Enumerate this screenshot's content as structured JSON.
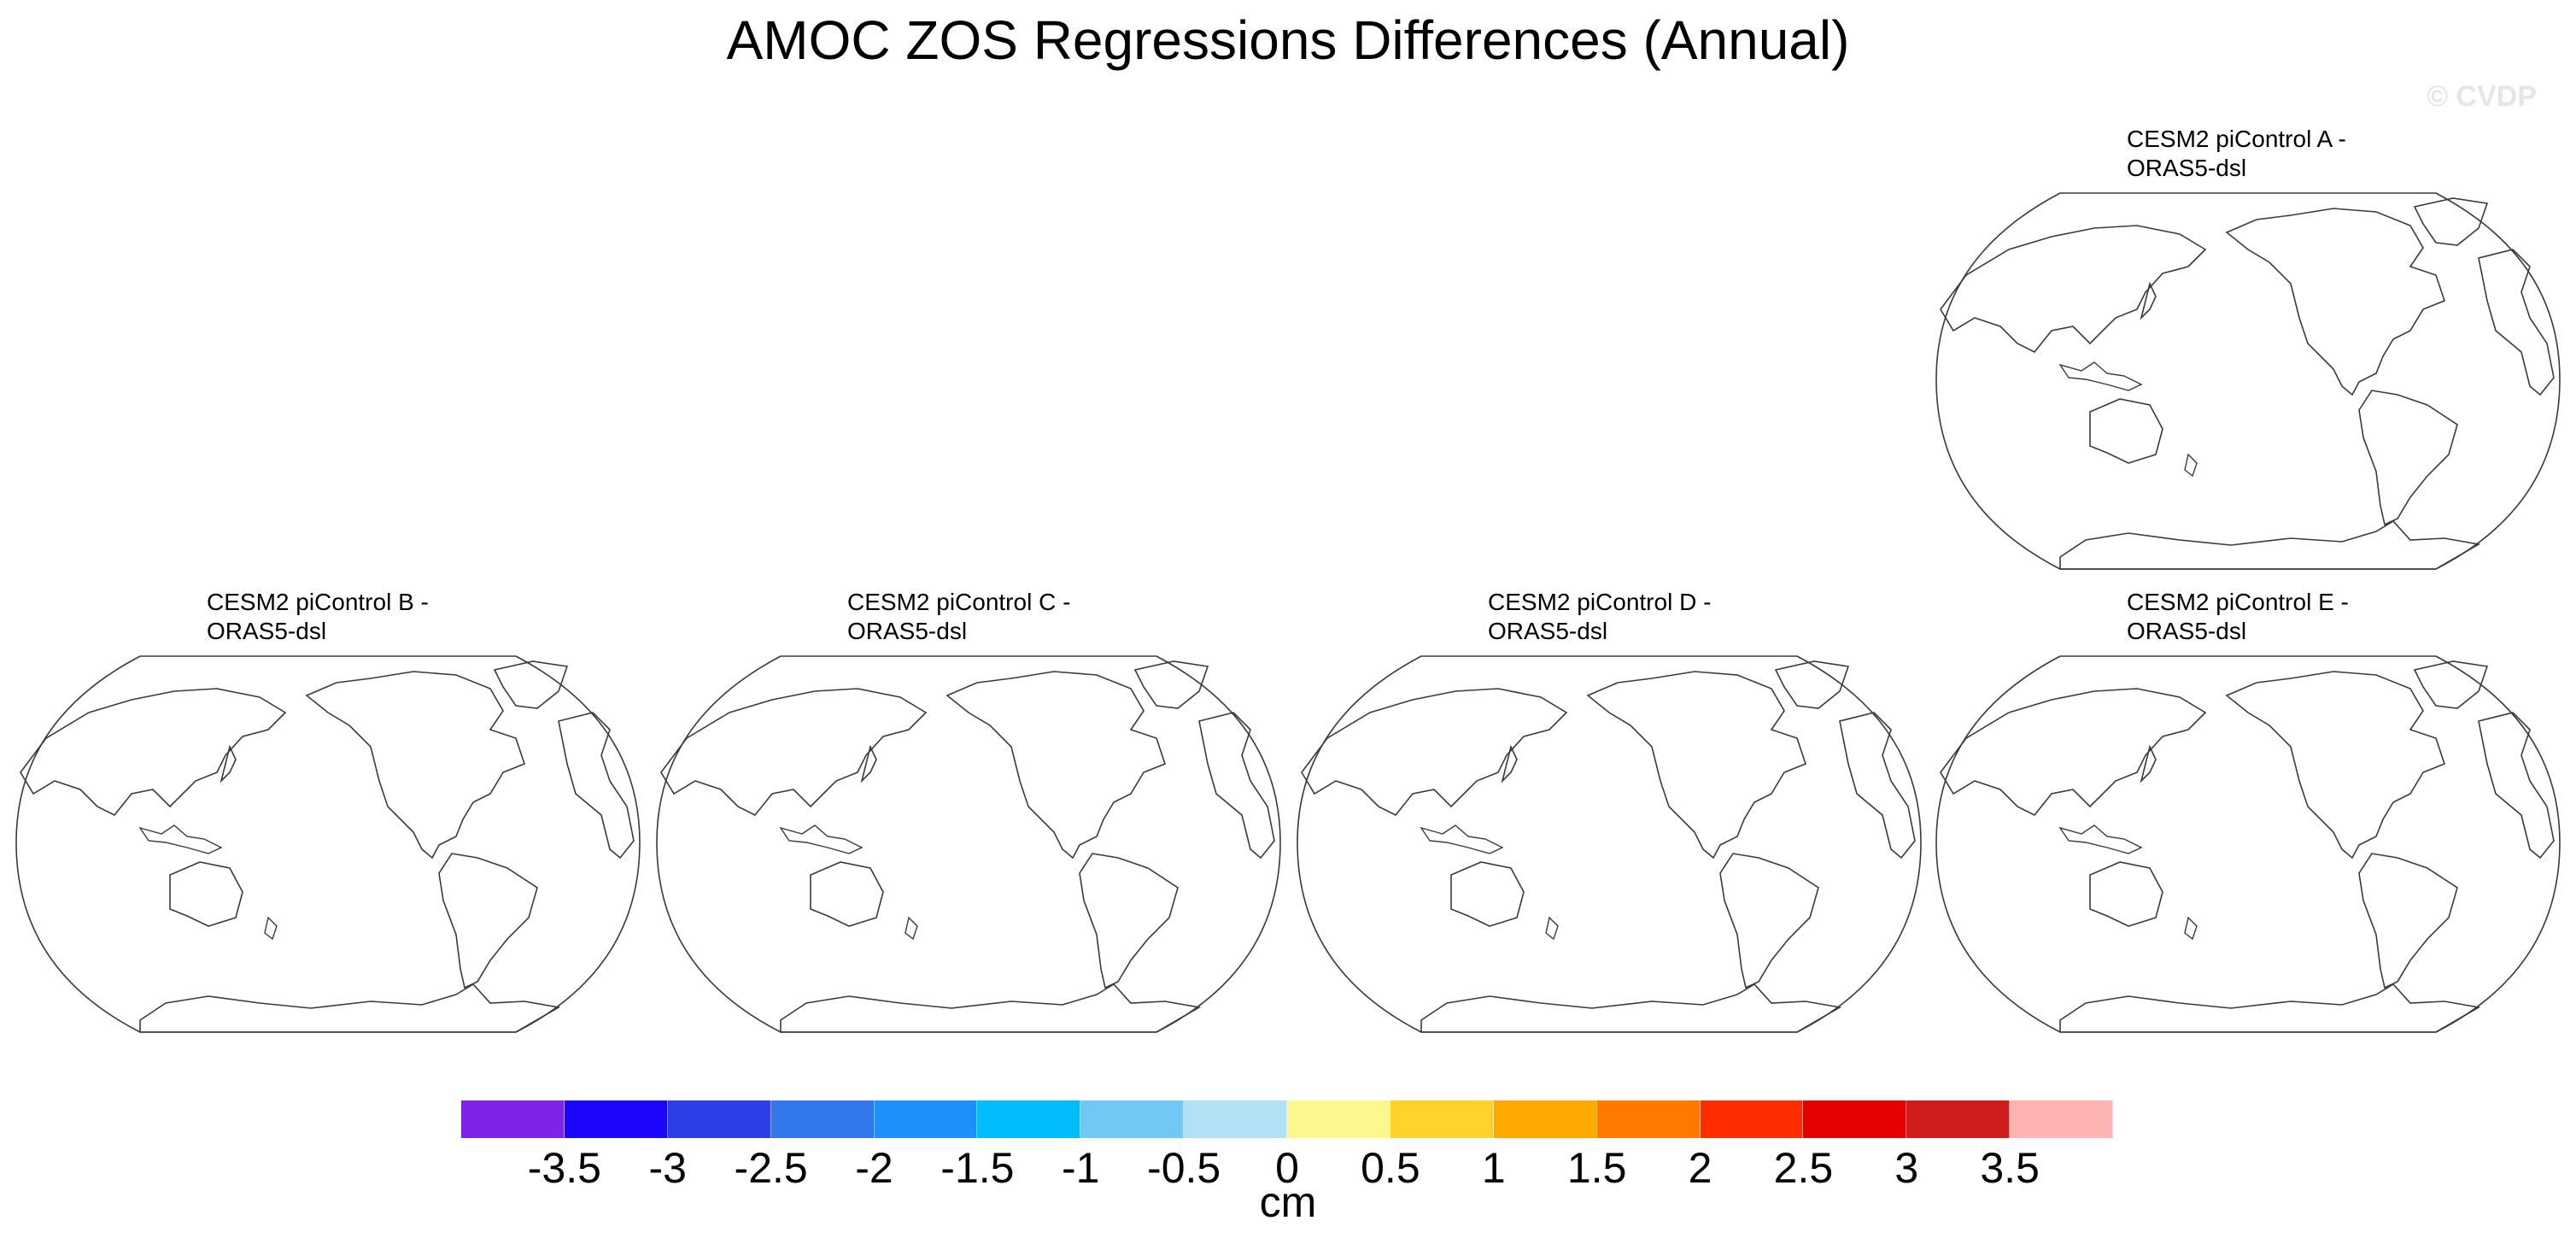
{
  "title": "AMOC ZOS Regressions Differences (Annual)",
  "watermark": "© CVDP",
  "panels": [
    {
      "label": "CESM2 piControl A -\nORAS5-dsl"
    },
    {
      "label": "CESM2 piControl B -\nORAS5-dsl"
    },
    {
      "label": "CESM2 piControl C -\nORAS5-dsl"
    },
    {
      "label": "CESM2 piControl D -\nORAS5-dsl"
    },
    {
      "label": "CESM2 piControl E -\nORAS5-dsl"
    }
  ],
  "colorbar": {
    "colors": [
      "#8023e8",
      "#1c06fb",
      "#2b3fe6",
      "#3377ec",
      "#1e90fb",
      "#00bcfa",
      "#72c8f2",
      "#b2e0f4",
      "#fdf88e",
      "#ffd32b",
      "#ffa902",
      "#ff7800",
      "#ff2d00",
      "#e50000",
      "#cf1d1d",
      "#ffb3b3"
    ],
    "ticks": [
      "-3.5",
      "-3",
      "-2.5",
      "-2",
      "-1.5",
      "-1",
      "-0.5",
      "0",
      "0.5",
      "1",
      "1.5",
      "2",
      "2.5",
      "3",
      "3.5"
    ],
    "unit": "cm"
  }
}
